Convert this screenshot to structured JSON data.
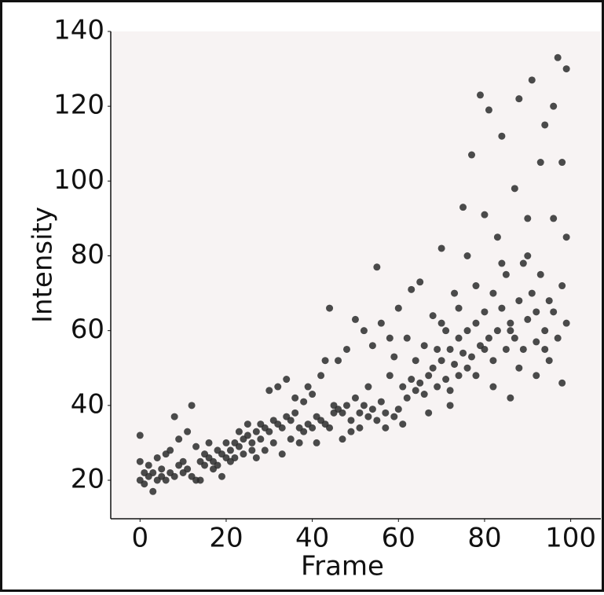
{
  "chart_data": {
    "type": "scatter",
    "x_label": "Frame",
    "y_label": "Intensity",
    "color": "#2b2b2b",
    "background": "#f7f3f3",
    "xlim": [
      -6.8,
      107
    ],
    "ylim": [
      9.7,
      140
    ],
    "xticks": [
      0,
      20,
      40,
      60,
      80,
      100
    ],
    "yticks": [
      20,
      40,
      60,
      80,
      100,
      120,
      140
    ],
    "x": [
      0,
      0,
      0,
      1,
      1,
      2,
      2,
      3,
      3,
      4,
      4,
      5,
      5,
      6,
      6,
      7,
      7,
      8,
      8,
      9,
      9,
      10,
      10,
      11,
      11,
      12,
      12,
      13,
      13,
      14,
      14,
      15,
      15,
      16,
      16,
      17,
      17,
      18,
      18,
      19,
      19,
      20,
      20,
      21,
      21,
      22,
      22,
      23,
      23,
      24,
      24,
      25,
      25,
      26,
      26,
      27,
      27,
      28,
      28,
      29,
      29,
      30,
      30,
      31,
      31,
      32,
      32,
      33,
      33,
      34,
      34,
      35,
      35,
      36,
      36,
      37,
      37,
      38,
      38,
      39,
      39,
      40,
      40,
      41,
      41,
      42,
      42,
      43,
      43,
      44,
      44,
      45,
      45,
      46,
      46,
      47,
      47,
      48,
      48,
      49,
      49,
      50,
      50,
      51,
      51,
      52,
      52,
      53,
      53,
      54,
      54,
      55,
      55,
      56,
      56,
      57,
      57,
      58,
      58,
      59,
      59,
      60,
      60,
      61,
      61,
      62,
      62,
      63,
      63,
      64,
      64,
      65,
      65,
      66,
      66,
      67,
      67,
      68,
      68,
      69,
      69,
      70,
      70,
      71,
      71,
      72,
      72,
      73,
      73,
      74,
      74,
      75,
      75,
      76,
      76,
      77,
      77,
      78,
      78,
      79,
      79,
      80,
      80,
      81,
      81,
      82,
      82,
      83,
      83,
      84,
      84,
      85,
      85,
      86,
      86,
      87,
      87,
      88,
      88,
      89,
      89,
      90,
      90,
      91,
      91,
      92,
      92,
      93,
      93,
      94,
      94,
      95,
      95,
      96,
      96,
      97,
      97,
      98,
      98,
      99,
      99,
      70,
      72,
      74,
      76,
      78,
      80,
      82,
      84,
      86,
      88,
      90,
      92,
      94,
      96,
      98,
      99
    ],
    "values": [
      20,
      25,
      32,
      22,
      19,
      21,
      24,
      17,
      22,
      20,
      26,
      21,
      23,
      20,
      27,
      22,
      28,
      21,
      37,
      24,
      31,
      25,
      22,
      23,
      33,
      21,
      40,
      20,
      29,
      20,
      25,
      24,
      27,
      26,
      30,
      25,
      23,
      28,
      24,
      27,
      21,
      26,
      30,
      28,
      25,
      30,
      26,
      29,
      33,
      31,
      27,
      32,
      35,
      30,
      28,
      33,
      26,
      35,
      31,
      34,
      28,
      33,
      44,
      36,
      30,
      35,
      45,
      34,
      27,
      37,
      47,
      36,
      31,
      38,
      42,
      34,
      30,
      41,
      33,
      35,
      45,
      34,
      43,
      37,
      30,
      36,
      48,
      35,
      52,
      34,
      66,
      40,
      38,
      39,
      52,
      38,
      31,
      40,
      55,
      36,
      33,
      42,
      63,
      38,
      34,
      40,
      60,
      37,
      45,
      39,
      56,
      36,
      77,
      41,
      62,
      38,
      34,
      48,
      58,
      37,
      53,
      39,
      66,
      45,
      35,
      42,
      58,
      47,
      71,
      44,
      52,
      46,
      73,
      43,
      56,
      48,
      38,
      50,
      64,
      45,
      55,
      52,
      82,
      47,
      60,
      55,
      44,
      51,
      70,
      58,
      48,
      54,
      93,
      60,
      80,
      53,
      107,
      62,
      48,
      56,
      123,
      65,
      91,
      58,
      119,
      70,
      52,
      60,
      85,
      66,
      112,
      55,
      75,
      62,
      42,
      58,
      98,
      68,
      122,
      55,
      78,
      63,
      90,
      70,
      127,
      57,
      48,
      75,
      105,
      60,
      115,
      52,
      68,
      65,
      120,
      58,
      133,
      72,
      46,
      62,
      85,
      62,
      40,
      66,
      50,
      72,
      55,
      45,
      78,
      60,
      50,
      80,
      65,
      55,
      90,
      105,
      130
    ]
  }
}
